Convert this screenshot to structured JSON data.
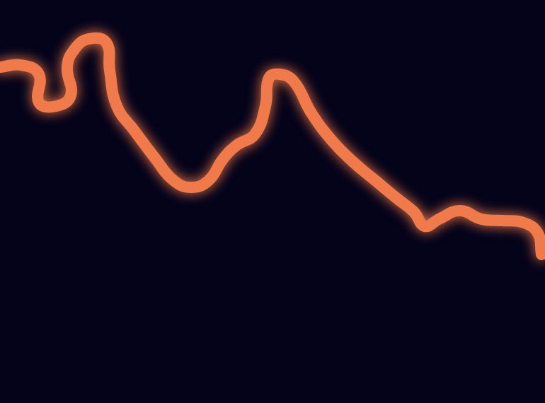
{
  "chart_data": {
    "type": "line",
    "x": [
      0,
      30,
      55,
      55,
      80,
      100,
      95,
      105,
      125,
      150,
      155,
      165,
      190,
      220,
      245,
      270,
      295,
      315,
      335,
      360,
      375,
      380,
      395,
      415,
      440,
      470,
      500,
      530,
      560,
      585,
      600,
      620,
      650,
      680,
      710,
      740,
      760,
      765
    ],
    "values": [
      475,
      478,
      465,
      425,
      420,
      435,
      475,
      500,
      515,
      510,
      470,
      420,
      385,
      345,
      315,
      305,
      315,
      345,
      365,
      380,
      420,
      460,
      465,
      455,
      410,
      370,
      340,
      315,
      290,
      270,
      250,
      260,
      272,
      260,
      258,
      255,
      240,
      210
    ],
    "color": "#f07a4a",
    "xlim": [
      0,
      770
    ],
    "ylim": [
      0,
      570
    ],
    "grid": false,
    "tick_labels": false
  }
}
